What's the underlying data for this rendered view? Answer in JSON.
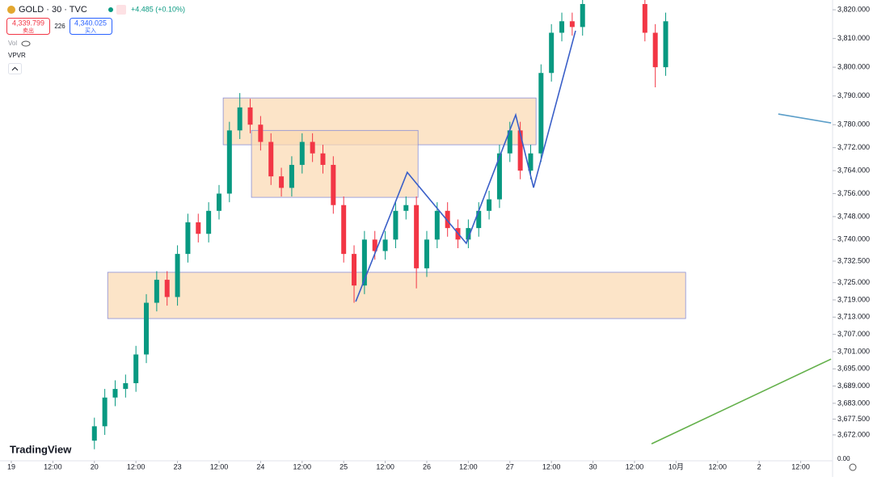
{
  "header": {
    "symbol": "GOLD · 30 · TVC",
    "change": "+4.485 (+0.10%)",
    "sell_price": "4,339.799",
    "sell_label": "卖出",
    "spread": "226",
    "buy_price": "4,340.025",
    "buy_label": "买入",
    "volume_indicator": "Vol",
    "vpvr_indicator": "VPVR",
    "logo": "TradingView",
    "volume_axis_label": "0.00"
  },
  "chart_data": {
    "type": "candlestick",
    "xlim": [
      -0.272,
      19.767
    ],
    "ylim": [
      3665.8,
      3823.4
    ],
    "xticks": [
      {
        "value": 0,
        "label": "19"
      },
      {
        "value": 1,
        "label": "12:00"
      },
      {
        "value": 2,
        "label": "20"
      },
      {
        "value": 3,
        "label": "12:00"
      },
      {
        "value": 4,
        "label": "23"
      },
      {
        "value": 5,
        "label": "12:00"
      },
      {
        "value": 6,
        "label": "24"
      },
      {
        "value": 7,
        "label": "12:00"
      },
      {
        "value": 8,
        "label": "25"
      },
      {
        "value": 9,
        "label": "12:00"
      },
      {
        "value": 10,
        "label": "26"
      },
      {
        "value": 11,
        "label": "12:00"
      },
      {
        "value": 12,
        "label": "27"
      },
      {
        "value": 13,
        "label": "12:00"
      },
      {
        "value": 14,
        "label": "30"
      },
      {
        "value": 15,
        "label": "12:00"
      },
      {
        "value": 16,
        "label": "10月"
      },
      {
        "value": 17,
        "label": "12:00"
      },
      {
        "value": 18,
        "label": "2"
      },
      {
        "value": 19,
        "label": "12:00"
      }
    ],
    "yticks": [
      {
        "value": 3820,
        "label": "3,820.000"
      },
      {
        "value": 3810,
        "label": "3,810.000"
      },
      {
        "value": 3800,
        "label": "3,800.000"
      },
      {
        "value": 3790,
        "label": "3,790.000"
      },
      {
        "value": 3780,
        "label": "3,780.000"
      },
      {
        "value": 3772,
        "label": "3,772.000"
      },
      {
        "value": 3764,
        "label": "3,764.000"
      },
      {
        "value": 3756,
        "label": "3,756.000"
      },
      {
        "value": 3748,
        "label": "3,748.000"
      },
      {
        "value": 3740,
        "label": "3,740.000"
      },
      {
        "value": 3732.5,
        "label": "3,732.500"
      },
      {
        "value": 3725,
        "label": "3,725.000"
      },
      {
        "value": 3719,
        "label": "3,719.000"
      },
      {
        "value": 3713,
        "label": "3,713.000"
      },
      {
        "value": 3707,
        "label": "3,707.000"
      },
      {
        "value": 3701,
        "label": "3,701.000"
      },
      {
        "value": 3695,
        "label": "3,695.000"
      },
      {
        "value": 3689,
        "label": "3,689.000"
      },
      {
        "value": 3683,
        "label": "3,683.000"
      },
      {
        "value": 3677.5,
        "label": "3,677.500"
      },
      {
        "value": 3672,
        "label": "3,672.000"
      }
    ],
    "up_color": "#089981",
    "down_color": "#f23645",
    "x": [
      2.0,
      2.25,
      2.5,
      2.75,
      3.0,
      3.25,
      3.5,
      3.75,
      4.0,
      4.25,
      4.5,
      4.75,
      5.0,
      5.25,
      5.5,
      5.75,
      6.0,
      6.25,
      6.5,
      6.75,
      7.0,
      7.25,
      7.5,
      7.75,
      8.0,
      8.25,
      8.5,
      8.75,
      9.0,
      9.25,
      9.5,
      9.75,
      10.0,
      10.25,
      10.5,
      10.75,
      11.0,
      11.25,
      11.5,
      11.75,
      12.0,
      12.25,
      12.5,
      12.75,
      13.0,
      13.25,
      13.5,
      13.75,
      15.25,
      15.5,
      15.75
    ],
    "open": [
      3670,
      3675,
      3685,
      3688,
      3690,
      3700,
      3718,
      3726,
      3720,
      3735,
      3746,
      3742,
      3750,
      3756,
      3778,
      3786,
      3780,
      3774,
      3762,
      3758,
      3766,
      3774,
      3770,
      3766,
      3752,
      3735,
      3724,
      3740,
      3736,
      3740,
      3750,
      3752,
      3730,
      3740,
      3750,
      3744,
      3740,
      3744,
      3750,
      3754,
      3770,
      3778,
      3764,
      3770,
      3798,
      3812,
      3816,
      3814,
      3822,
      3812,
      3800
    ],
    "high": [
      3678,
      3688,
      3691,
      3693,
      3703,
      3721,
      3729,
      3729,
      3738,
      3749,
      3749,
      3753,
      3759,
      3781,
      3791,
      3789,
      3783,
      3777,
      3765,
      3769,
      3777,
      3777,
      3773,
      3769,
      3755,
      3738,
      3743,
      3743,
      3743,
      3753,
      3755,
      3755,
      3743,
      3753,
      3753,
      3747,
      3747,
      3753,
      3757,
      3773,
      3781,
      3781,
      3773,
      3801,
      3815,
      3819,
      3819,
      3825,
      3825,
      3815,
      3819
    ],
    "low": [
      3667,
      3672,
      3682,
      3685,
      3687,
      3697,
      3715,
      3717,
      3717,
      3732,
      3739,
      3739,
      3747,
      3753,
      3775,
      3777,
      3771,
      3759,
      3755,
      3755,
      3763,
      3767,
      3763,
      3749,
      3732,
      3718,
      3721,
      3733,
      3733,
      3737,
      3747,
      3723,
      3727,
      3737,
      3741,
      3737,
      3737,
      3741,
      3747,
      3751,
      3767,
      3761,
      3761,
      3767,
      3795,
      3809,
      3811,
      3811,
      3809,
      3793,
      3797
    ],
    "close": [
      3675,
      3685,
      3688,
      3690,
      3700,
      3718,
      3726,
      3720,
      3735,
      3746,
      3742,
      3750,
      3756,
      3778,
      3786,
      3780,
      3774,
      3762,
      3758,
      3766,
      3774,
      3770,
      3766,
      3752,
      3735,
      3724,
      3740,
      3736,
      3740,
      3750,
      3752,
      3730,
      3740,
      3750,
      3744,
      3740,
      3744,
      3750,
      3754,
      3770,
      3778,
      3764,
      3770,
      3798,
      3812,
      3816,
      3814,
      3822,
      3812,
      3800,
      3816
    ],
    "zones": [
      {
        "x": [
          5.1,
          12.63
        ],
        "y": [
          3773,
          3789.3
        ],
        "color": "#fbd9b0"
      },
      {
        "x": [
          5.78,
          9.79
        ],
        "y": [
          3754.7,
          3778
        ],
        "color": "#fbd9b0"
      },
      {
        "x": [
          2.32,
          16.23
        ],
        "y": [
          3712.5,
          3728.6
        ],
        "color": "#fbd9b0"
      }
    ],
    "lines": [
      {
        "x": [
          8.29,
          9.53,
          10.95,
          12.14,
          12.57,
          13.58
        ],
        "y": [
          3718.4,
          3763.4,
          3738.7,
          3783.4,
          3758.1,
          3812.7
        ],
        "color": "#3a5fc8"
      },
      {
        "x": [
          18.46,
          19.73
        ],
        "y": [
          3783.7,
          3780.6
        ],
        "color": "#5b9ec9"
      },
      {
        "x": [
          15.41,
          19.73
        ],
        "y": [
          3668.9,
          3698.4
        ],
        "color": "#63b04a"
      }
    ]
  }
}
